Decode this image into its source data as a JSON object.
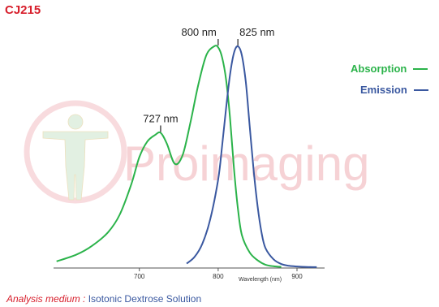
{
  "title": "CJ215",
  "footer": {
    "label": "Analysis medium :",
    "value": "Isotonic Dextrose Solution"
  },
  "watermark": {
    "text": "Proimaging"
  },
  "colors": {
    "title": "#d71e2b",
    "absorption": "#2bb34a",
    "emission": "#3a58a0",
    "watermark": "#f3c3c8"
  },
  "chart_data": {
    "type": "line",
    "xlabel": "Wavelength (nm)",
    "ylabel": "",
    "xlim": [
      585,
      935
    ],
    "ylim": [
      0,
      1
    ],
    "xticks": [
      700,
      800,
      900
    ],
    "grid": false,
    "legend_position": "top-right",
    "series": [
      {
        "name": "Absorption",
        "color": "#2bb34a",
        "x": [
          595,
          620,
          640,
          660,
          675,
          690,
          700,
          710,
          720,
          727,
          735,
          745,
          755,
          765,
          775,
          785,
          795,
          800,
          805,
          810,
          815,
          820,
          825,
          830,
          840,
          850,
          860,
          870,
          880
        ],
        "y": [
          0.03,
          0.06,
          0.1,
          0.16,
          0.24,
          0.38,
          0.5,
          0.57,
          0.6,
          0.61,
          0.56,
          0.47,
          0.51,
          0.66,
          0.83,
          0.96,
          1.0,
          0.995,
          0.95,
          0.85,
          0.68,
          0.45,
          0.27,
          0.15,
          0.07,
          0.035,
          0.015,
          0.008,
          0.005
        ]
      },
      {
        "name": "Emission",
        "color": "#3a58a0",
        "x": [
          760,
          770,
          780,
          790,
          800,
          805,
          810,
          815,
          820,
          825,
          830,
          835,
          840,
          845,
          850,
          855,
          860,
          870,
          880,
          890,
          900,
          910,
          925
        ],
        "y": [
          0.02,
          0.05,
          0.11,
          0.22,
          0.4,
          0.55,
          0.72,
          0.87,
          0.97,
          1.0,
          0.96,
          0.84,
          0.64,
          0.44,
          0.28,
          0.16,
          0.09,
          0.04,
          0.018,
          0.01,
          0.007,
          0.005,
          0.004
        ]
      }
    ],
    "annotations": [
      {
        "text": "727 nm",
        "x": 727,
        "y": 0.61
      },
      {
        "text": "800 nm",
        "x": 800,
        "y": 1.0
      },
      {
        "text": "825 nm",
        "x": 825,
        "y": 1.0
      }
    ]
  }
}
